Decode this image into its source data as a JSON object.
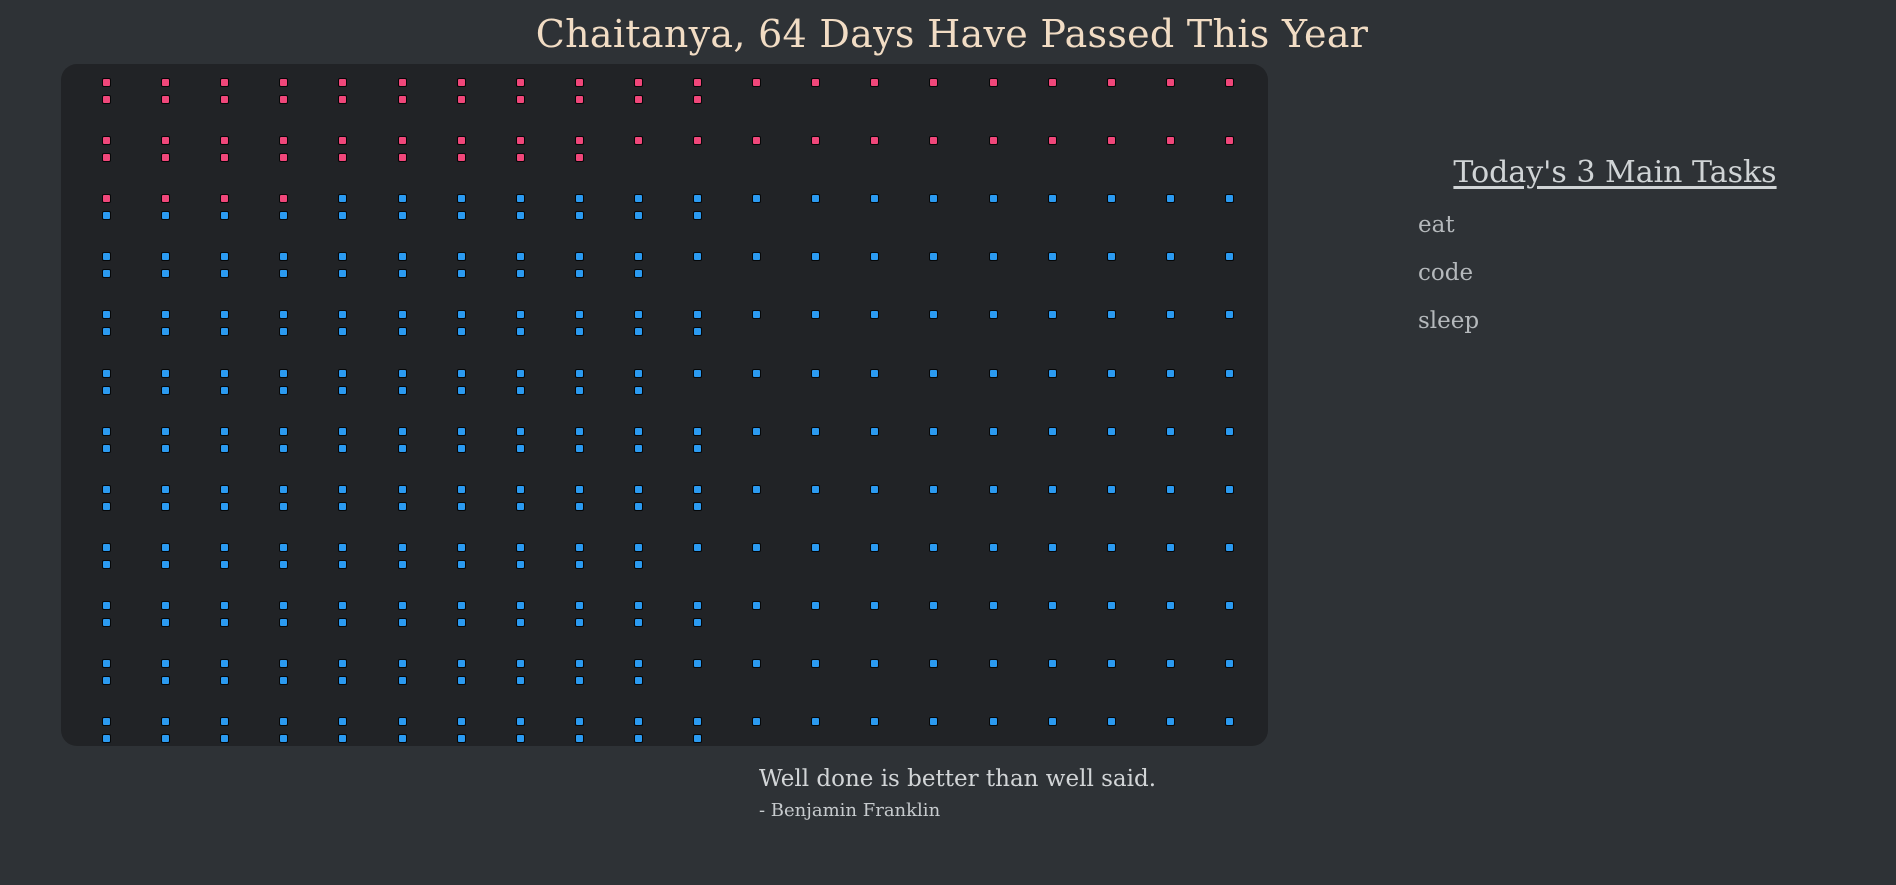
{
  "header": {
    "title": "Chaitanya, 64 Days Have Passed This Year"
  },
  "year_grid": {
    "months": 12,
    "days_in_month": [
      31,
      29,
      31,
      30,
      31,
      30,
      31,
      31,
      30,
      31,
      30,
      31
    ],
    "days_passed": 64,
    "colors": {
      "passed": "#f0477a",
      "remaining": "#2b9af0",
      "panel_background": "#212326"
    }
  },
  "tasks": {
    "heading": "Today's 3 Main Tasks",
    "items": [
      "eat",
      "code",
      "sleep"
    ]
  },
  "quote": {
    "text": "Well done is better than well said.",
    "author": "- Benjamin Franklin"
  },
  "theme": {
    "page_background": "#2e3236",
    "title_color": "#f1dcc4"
  }
}
